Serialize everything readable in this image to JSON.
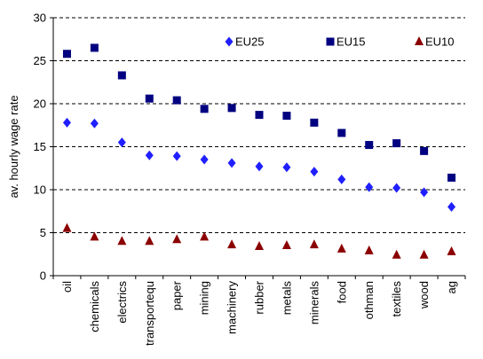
{
  "chart_data": {
    "type": "scatter",
    "title": "",
    "xlabel": "",
    "ylabel": "av. hourly wage rate",
    "ylim": [
      0,
      30
    ],
    "yticks": [
      0,
      5,
      10,
      15,
      20,
      25,
      30
    ],
    "grid": true,
    "legend_position": "top-right",
    "categories": [
      "oil",
      "chemicals",
      "electrics",
      "transportequ",
      "paper",
      "mining",
      "machinery",
      "rubber",
      "metals",
      "minerals",
      "food",
      "othman",
      "textiles",
      "wood",
      "ag"
    ],
    "series": [
      {
        "name": "EU25",
        "marker": "diamond",
        "color": "#1f1fff",
        "values": [
          17.8,
          17.7,
          15.5,
          14.0,
          13.9,
          13.5,
          13.1,
          12.7,
          12.6,
          12.1,
          11.2,
          10.3,
          10.2,
          9.7,
          8.0
        ]
      },
      {
        "name": "EU15",
        "marker": "square",
        "color": "#000080",
        "values": [
          25.8,
          26.5,
          23.3,
          20.6,
          20.4,
          19.4,
          19.5,
          18.7,
          18.6,
          17.8,
          16.6,
          15.2,
          15.4,
          14.5,
          11.4
        ]
      },
      {
        "name": "EU10",
        "marker": "triangle",
        "color": "#8b0000",
        "values": [
          5.5,
          4.5,
          4.0,
          4.0,
          4.2,
          4.5,
          3.6,
          3.4,
          3.5,
          3.6,
          3.1,
          2.9,
          2.4,
          2.4,
          2.8
        ]
      }
    ]
  }
}
